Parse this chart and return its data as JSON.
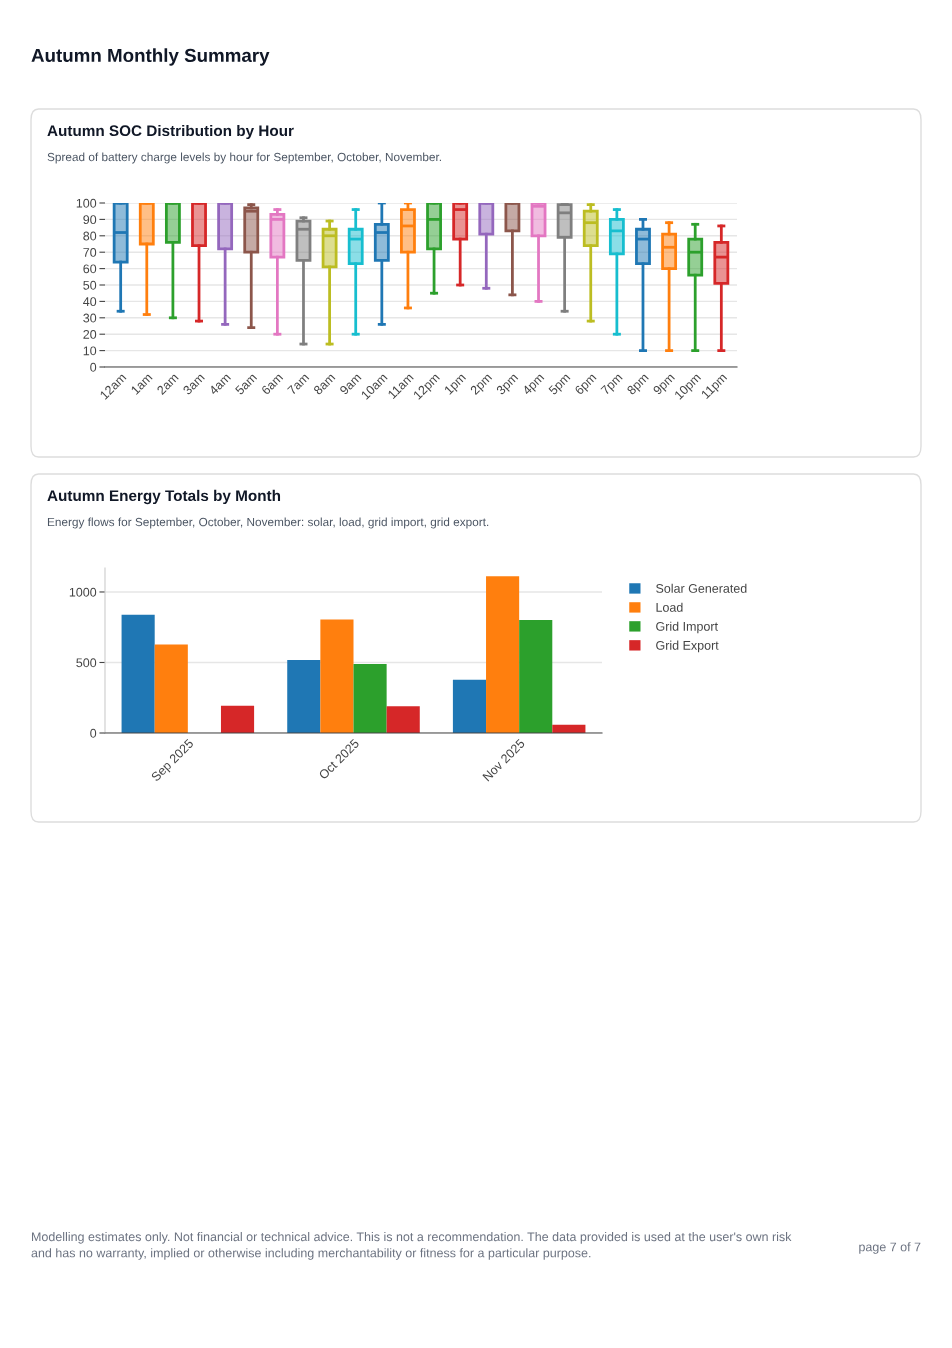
{
  "chart_data": [
    {
      "type": "box",
      "title": "Autumn SOC Distribution by Hour",
      "subtitle": "Spread of battery charge levels by hour for September, October, November.",
      "annotations": [
        "Autumn Monthly Summary"
      ],
      "categories": [
        "12am",
        "1am",
        "2am",
        "3am",
        "4am",
        "5am",
        "6am",
        "7am",
        "8am",
        "9am",
        "10am",
        "11am",
        "12pm",
        "1pm",
        "2pm",
        "3pm",
        "4pm",
        "5pm",
        "6pm",
        "7pm",
        "8pm",
        "9pm",
        "10pm",
        "11pm"
      ],
      "colors": [
        "#1f77b4",
        "#ff7f0e",
        "#2ca02c",
        "#d62728",
        "#9467bd",
        "#8c564b",
        "#e377c2",
        "#7f7f7f",
        "#bcbd22",
        "#17becf",
        "#1f77b4",
        "#ff7f0e",
        "#2ca02c",
        "#d62728",
        "#9467bd",
        "#8c564b",
        "#e377c2",
        "#7f7f7f",
        "#bcbd22",
        "#17becf",
        "#1f77b4",
        "#ff7f0e",
        "#2ca02c",
        "#d62728"
      ],
      "boxes": [
        {
          "low": 34,
          "q1": 64,
          "median": 82,
          "q3": 100,
          "high": 100
        },
        {
          "low": 32,
          "q1": 75,
          "median": 100,
          "q3": 100,
          "high": 100
        },
        {
          "low": 30,
          "q1": 76,
          "median": 100,
          "q3": 100,
          "high": 100
        },
        {
          "low": 28,
          "q1": 74,
          "median": 100,
          "q3": 100,
          "high": 100
        },
        {
          "low": 26,
          "q1": 72,
          "median": 100,
          "q3": 100,
          "high": 100
        },
        {
          "low": 24,
          "q1": 70,
          "median": 95,
          "q3": 97,
          "high": 99
        },
        {
          "low": 20,
          "q1": 67,
          "median": 90,
          "q3": 93,
          "high": 96
        },
        {
          "low": 14,
          "q1": 65,
          "median": 84,
          "q3": 89,
          "high": 91
        },
        {
          "low": 14,
          "q1": 61,
          "median": 80,
          "q3": 84,
          "high": 89
        },
        {
          "low": 20,
          "q1": 63,
          "median": 78,
          "q3": 84,
          "high": 96
        },
        {
          "low": 26,
          "q1": 65,
          "median": 82,
          "q3": 87,
          "high": 100
        },
        {
          "low": 36,
          "q1": 70,
          "median": 86,
          "q3": 96,
          "high": 100
        },
        {
          "low": 45,
          "q1": 72,
          "median": 90,
          "q3": 100,
          "high": 100
        },
        {
          "low": 50,
          "q1": 78,
          "median": 96,
          "q3": 100,
          "high": 100
        },
        {
          "low": 48,
          "q1": 81,
          "median": 100,
          "q3": 100,
          "high": 100
        },
        {
          "low": 44,
          "q1": 83,
          "median": 100,
          "q3": 100,
          "high": 100
        },
        {
          "low": 40,
          "q1": 80,
          "median": 98,
          "q3": 100,
          "high": 100
        },
        {
          "low": 34,
          "q1": 79,
          "median": 94,
          "q3": 99,
          "high": 100
        },
        {
          "low": 28,
          "q1": 74,
          "median": 88,
          "q3": 95,
          "high": 99
        },
        {
          "low": 20,
          "q1": 69,
          "median": 83,
          "q3": 90,
          "high": 96
        },
        {
          "low": 10,
          "q1": 63,
          "median": 78,
          "q3": 84,
          "high": 90
        },
        {
          "low": 10,
          "q1": 60,
          "median": 73,
          "q3": 81,
          "high": 88
        },
        {
          "low": 10,
          "q1": 56,
          "median": 70,
          "q3": 78,
          "high": 87
        },
        {
          "low": 10,
          "q1": 51,
          "median": 67,
          "q3": 76,
          "high": 86
        }
      ],
      "ylim": [
        0,
        100
      ],
      "yticks": [
        0,
        10,
        20,
        30,
        40,
        50,
        60,
        70,
        80,
        90,
        100
      ],
      "grid": "y",
      "legend": false
    },
    {
      "type": "bar",
      "title": "Autumn Energy Totals by Month",
      "subtitle": "Energy flows for September, October, November: solar, load, grid import, grid export.",
      "annotations": [
        "Modelling estimates only. Not financial or technical advice. This is not a recommendation. The data provided is used at the user's own risk and has no warranty, implied or otherwise including merchantability or fitness for a particular purpose.",
        "page 7 of 7"
      ],
      "categories": [
        "Sep 2025",
        "Oct 2025",
        "Nov 2025"
      ],
      "series": [
        {
          "name": "Solar Generated",
          "color": "#1f77b4",
          "values": [
            838,
            518,
            378
          ]
        },
        {
          "name": "Load",
          "color": "#ff7f0e",
          "values": [
            627,
            805,
            1112
          ]
        },
        {
          "name": "Grid Import",
          "color": "#2ca02c",
          "values": [
            0,
            490,
            802
          ]
        },
        {
          "name": "Grid Export",
          "color": "#d62728",
          "values": [
            193,
            190,
            58
          ]
        }
      ],
      "ylim": [
        0,
        1170
      ],
      "yticks": [
        0,
        500,
        1000
      ],
      "grid": "y",
      "legend": "right"
    }
  ]
}
